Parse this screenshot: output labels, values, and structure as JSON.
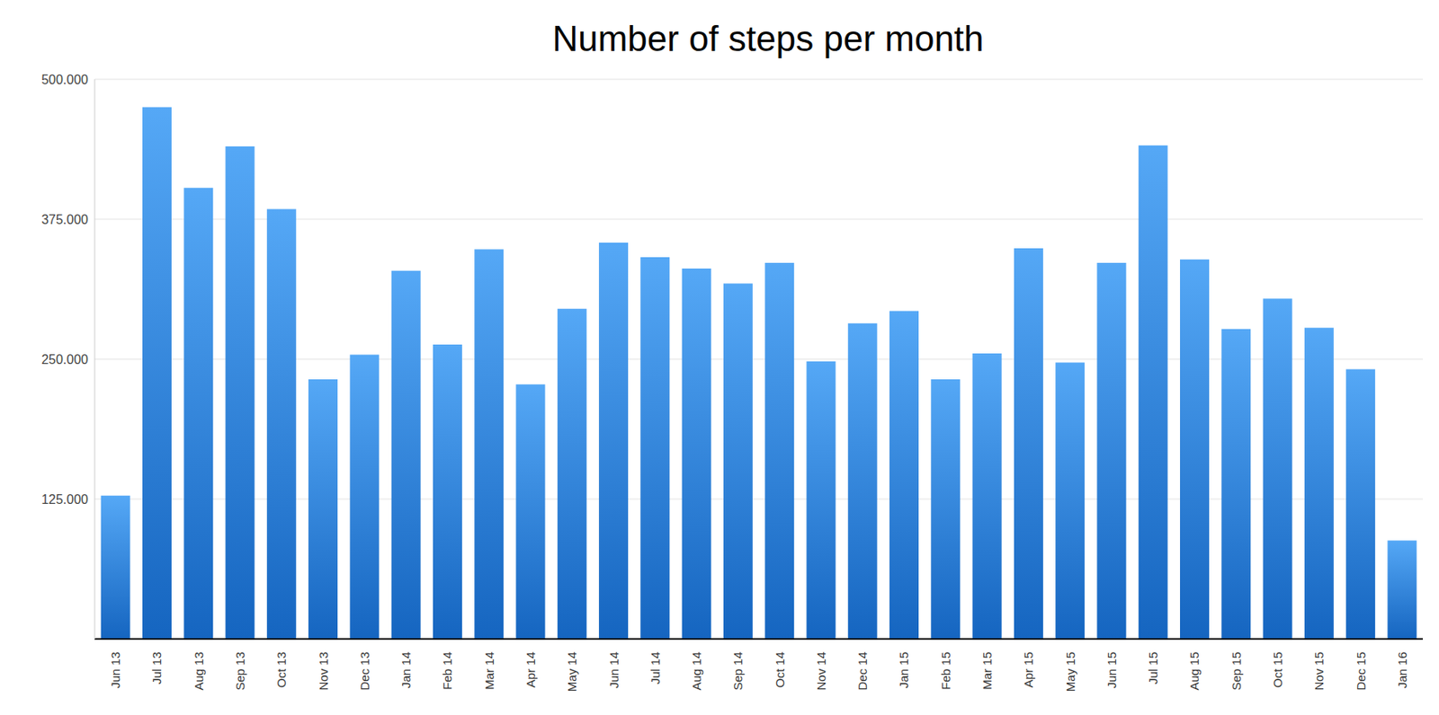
{
  "chart_data": {
    "type": "bar",
    "title": "Number of steps per month",
    "categories": [
      "Jun 13",
      "Jul 13",
      "Aug 13",
      "Sep 13",
      "Oct 13",
      "Nov 13",
      "Dec 13",
      "Jan 14",
      "Feb 14",
      "Mar 14",
      "Apr 14",
      "May 14",
      "Jun 14",
      "Jul 14",
      "Aug 14",
      "Sep 14",
      "Oct 14",
      "Nov 14",
      "Dec 14",
      "Jan 15",
      "Feb 15",
      "Mar 15",
      "Apr 15",
      "May 15",
      "Jun 15",
      "Jul 15",
      "Aug 15",
      "Sep 15",
      "Oct 15",
      "Nov 15",
      "Dec 15",
      "Jan 16"
    ],
    "values": [
      128000,
      475000,
      403000,
      440000,
      384000,
      232000,
      254000,
      329000,
      263000,
      348000,
      227500,
      295000,
      354000,
      341000,
      331000,
      317500,
      336000,
      248000,
      282000,
      293000,
      232000,
      255000,
      349000,
      247000,
      336000,
      441000,
      339000,
      277000,
      304000,
      278000,
      241000,
      88000
    ],
    "color": "#55a8f6",
    "ylim": [
      0,
      500000
    ],
    "yticks": [
      {
        "value": 125000,
        "label": "125.000"
      },
      {
        "value": 250000,
        "label": "250.000"
      },
      {
        "value": 375000,
        "label": "375.000"
      },
      {
        "value": 500000,
        "label": "500.000"
      }
    ],
    "grid": true
  }
}
